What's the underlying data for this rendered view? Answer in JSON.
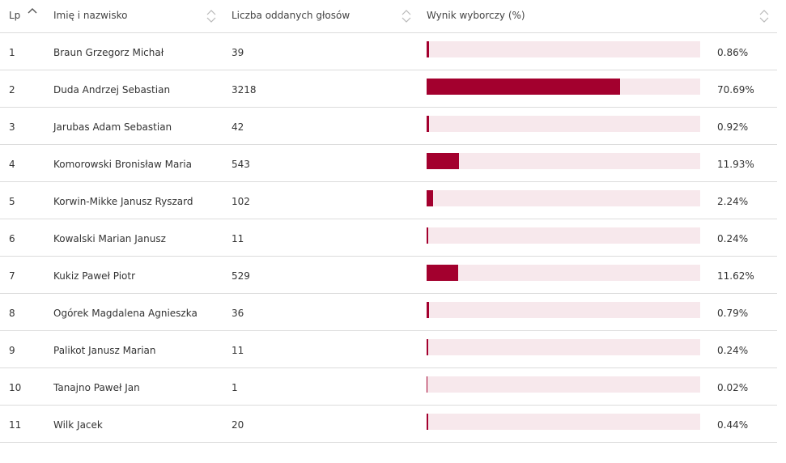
{
  "colors": {
    "bar_fill": "#a3002e",
    "bar_track": "#f7e8ec",
    "border": "#dcdcdc",
    "sort_icon": "#b8b8b8"
  },
  "table": {
    "columns": [
      {
        "key": "lp",
        "label": "Lp",
        "sort_icon": "sort-asc-icon"
      },
      {
        "key": "name",
        "label": "Imię i nazwisko",
        "sort_icon": "sort-both-icon"
      },
      {
        "key": "votes",
        "label": "Liczba oddanych głosów",
        "sort_icon": "sort-both-icon"
      },
      {
        "key": "result",
        "label": "Wynik wyborczy (%)",
        "sort_icon": "sort-both-icon"
      }
    ],
    "rows": [
      {
        "lp": "1",
        "name": "Braun Grzegorz Michał",
        "votes": "39",
        "pct_label": "0.86%",
        "pct": 0.86
      },
      {
        "lp": "2",
        "name": "Duda Andrzej Sebastian",
        "votes": "3218",
        "pct_label": "70.69%",
        "pct": 70.69
      },
      {
        "lp": "3",
        "name": "Jarubas Adam Sebastian",
        "votes": "42",
        "pct_label": "0.92%",
        "pct": 0.92
      },
      {
        "lp": "4",
        "name": "Komorowski Bronisław Maria",
        "votes": "543",
        "pct_label": "11.93%",
        "pct": 11.93
      },
      {
        "lp": "5",
        "name": "Korwin-Mikke Janusz Ryszard",
        "votes": "102",
        "pct_label": "2.24%",
        "pct": 2.24
      },
      {
        "lp": "6",
        "name": "Kowalski Marian Janusz",
        "votes": "11",
        "pct_label": "0.24%",
        "pct": 0.24
      },
      {
        "lp": "7",
        "name": "Kukiz Paweł Piotr",
        "votes": "529",
        "pct_label": "11.62%",
        "pct": 11.62
      },
      {
        "lp": "8",
        "name": "Ogórek Magdalena Agnieszka",
        "votes": "36",
        "pct_label": "0.79%",
        "pct": 0.79
      },
      {
        "lp": "9",
        "name": "Palikot Janusz Marian",
        "votes": "11",
        "pct_label": "0.24%",
        "pct": 0.24
      },
      {
        "lp": "10",
        "name": "Tanajno Paweł Jan",
        "votes": "1",
        "pct_label": "0.02%",
        "pct": 0.02
      },
      {
        "lp": "11",
        "name": "Wilk Jacek",
        "votes": "20",
        "pct_label": "0.44%",
        "pct": 0.44
      }
    ]
  }
}
